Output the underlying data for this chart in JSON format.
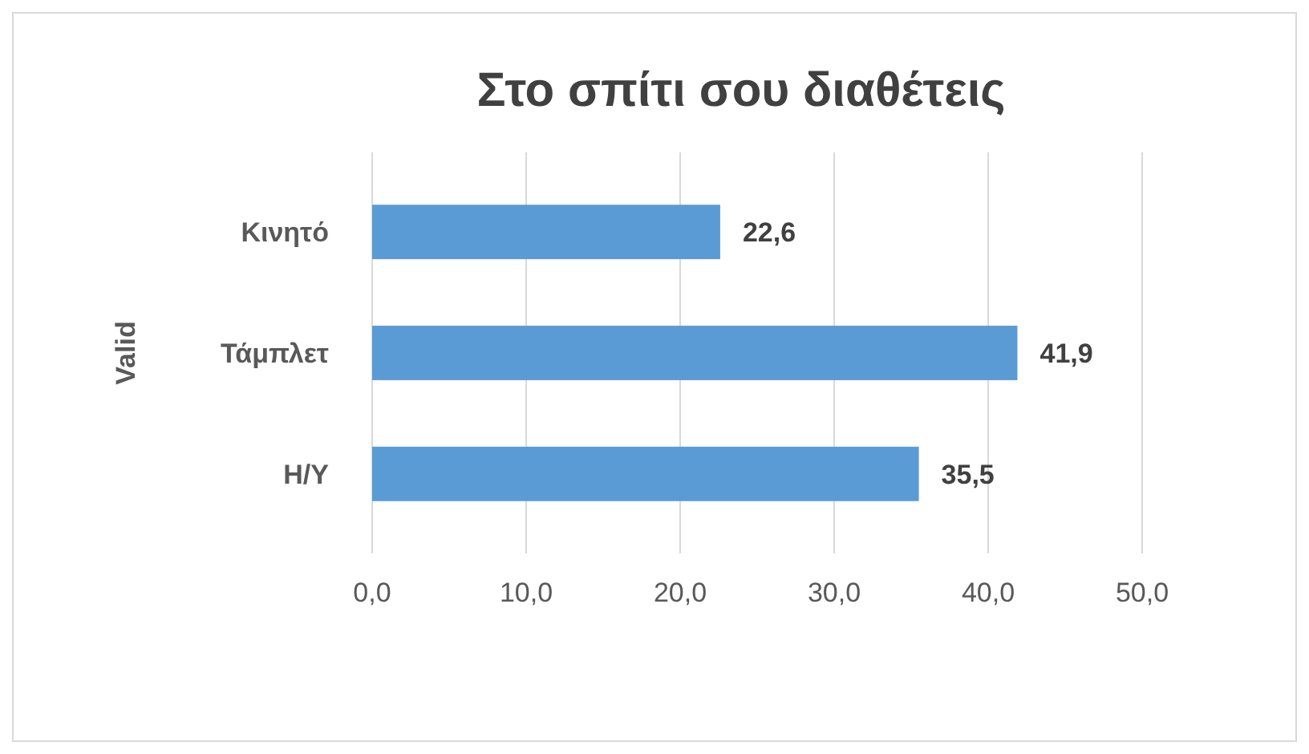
{
  "chart_data": {
    "type": "bar",
    "orientation": "horizontal",
    "title": "Στο σπίτι σου διαθέτεις",
    "ylabel": "Valid",
    "categories": [
      "Κινητό",
      "Τάμπλετ",
      "Η/Υ"
    ],
    "values": [
      22.6,
      41.9,
      35.5
    ],
    "value_labels": [
      "22,6",
      "41,9",
      "35,5"
    ],
    "color": "#5b9bd5",
    "xlim": [
      0,
      50
    ],
    "xticks": [
      {
        "value": 0,
        "label": "0,0"
      },
      {
        "value": 10,
        "label": "10,0"
      },
      {
        "value": 20,
        "label": "20,0"
      },
      {
        "value": 30,
        "label": "30,0"
      },
      {
        "value": 40,
        "label": "40,0"
      },
      {
        "value": 50,
        "label": "50,0"
      }
    ],
    "grid": "x"
  }
}
